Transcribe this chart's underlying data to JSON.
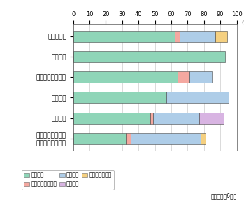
{
  "categories": [
    "中東・アフリカ・\n東欧・中南米市場",
    "西欧市場",
    "北米市場",
    "アジア太平洋市場",
    "日本市場",
    "全世界市場"
  ],
  "segments": [
    "日本企業",
    "アジア太平洋企業",
    "北米企業",
    "西欧企業",
    "その他地域企業"
  ],
  "colors": [
    "#8fd5b8",
    "#f4a8a0",
    "#aecde8",
    "#d8b4e2",
    "#f5d080"
  ],
  "data": [
    [
      32,
      3,
      43,
      0,
      3
    ],
    [
      47,
      2,
      28,
      15,
      0
    ],
    [
      57,
      0,
      38,
      0,
      0
    ],
    [
      64,
      7,
      14,
      0,
      0
    ],
    [
      93,
      0,
      0,
      0,
      0
    ],
    [
      62,
      3,
      22,
      0,
      7
    ]
  ],
  "xlim": [
    0,
    100
  ],
  "xticks": [
    0,
    10,
    20,
    30,
    40,
    50,
    60,
    70,
    80,
    90,
    100
  ],
  "note": "出典は付注6参照",
  "background_color": "#ffffff",
  "bar_height": 0.55,
  "edge_color": "#444444",
  "grid_color": "#cccccc"
}
